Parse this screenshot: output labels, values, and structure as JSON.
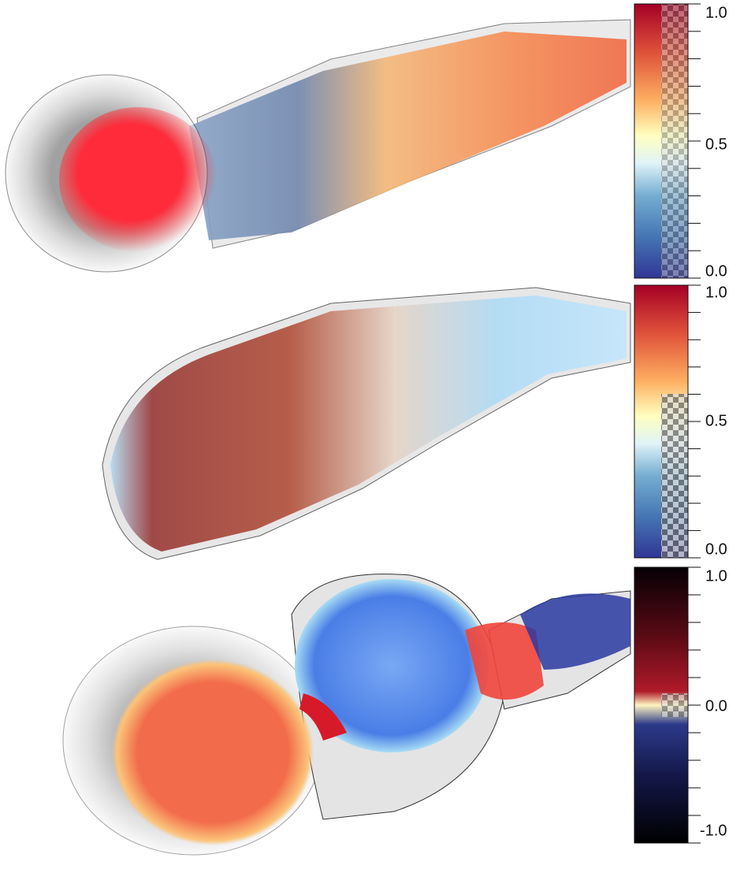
{
  "colorbars": [
    {
      "labels": [
        "1.0",
        "0.5",
        "0.0"
      ]
    },
    {
      "labels": [
        "1.0",
        "0.5",
        "0.0"
      ]
    },
    {
      "labels": [
        "1.0",
        "0.0",
        "-1.0"
      ]
    }
  ]
}
